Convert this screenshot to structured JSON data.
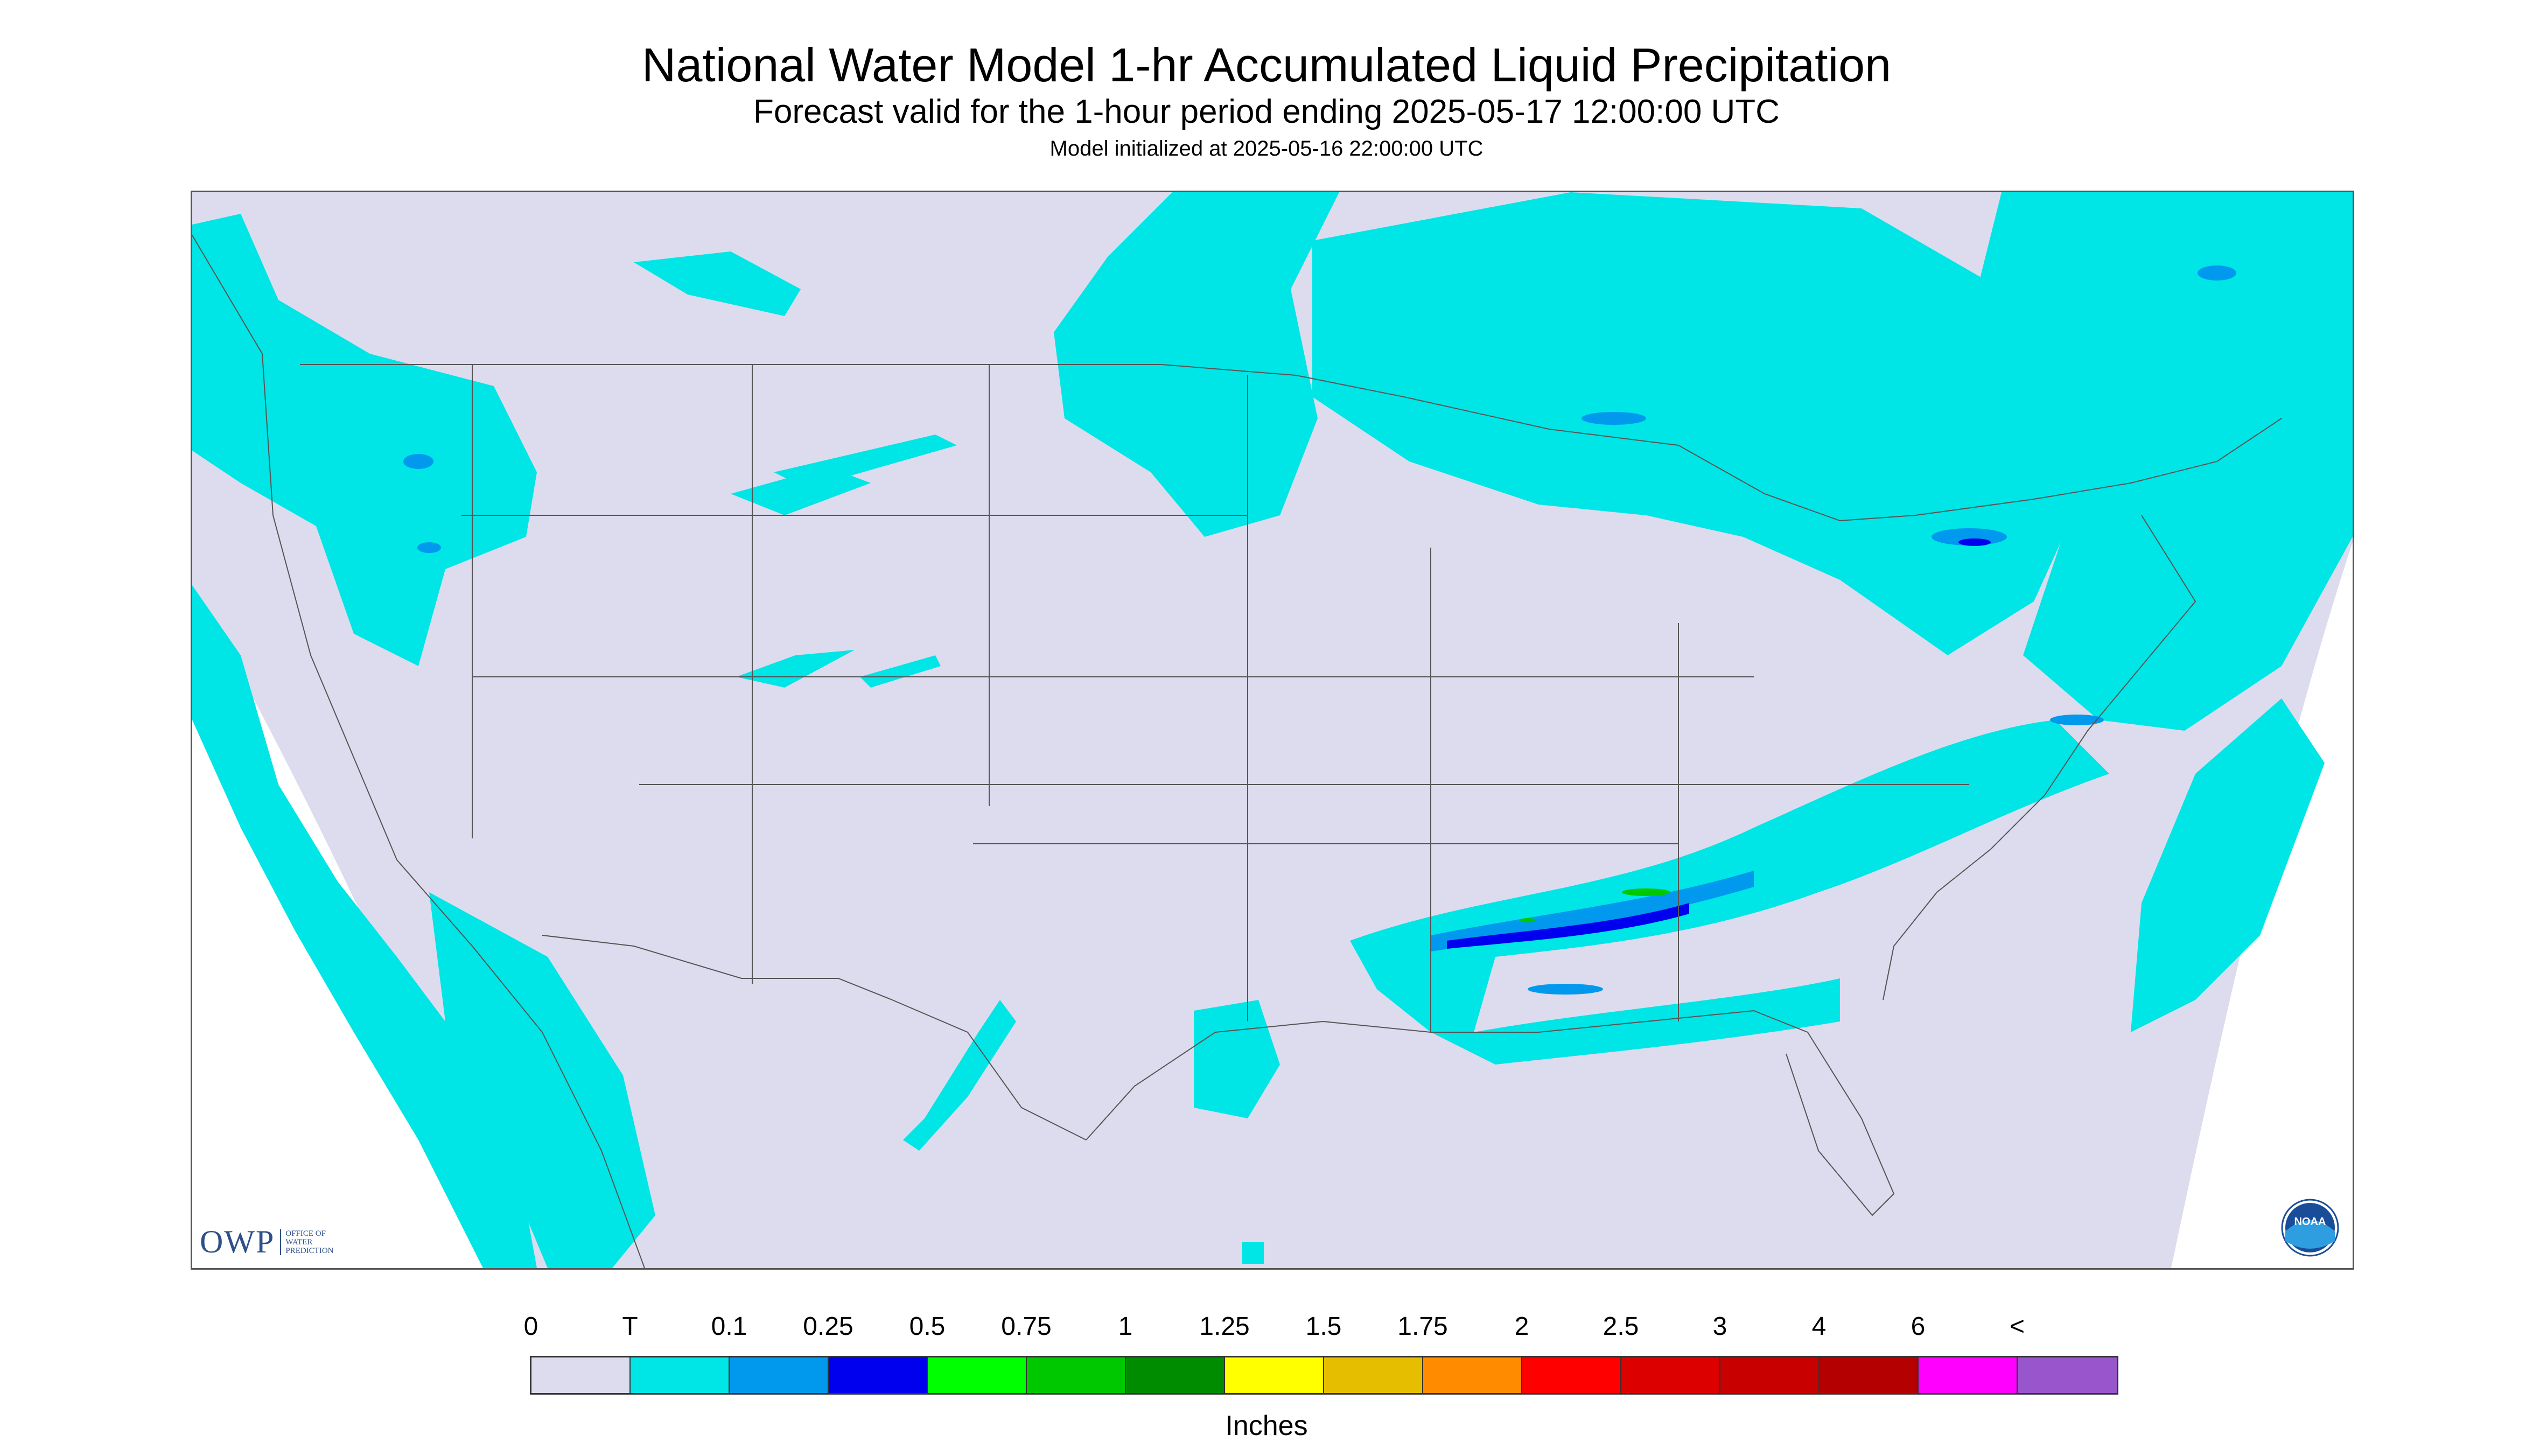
{
  "header": {
    "title": "National Water Model 1-hr Accumulated Liquid Precipitation",
    "subtitle": "Forecast valid for the 1-hour period ending 2025-05-17 12:00:00 UTC",
    "init_line": "Model initialized at 2025-05-16 22:00:00 UTC"
  },
  "logos": {
    "owp_letters": "OWP",
    "owp_subtext": "OFFICE OF WATER PREDICTION",
    "noaa_text": "NOAA"
  },
  "legend": {
    "units": "Inches",
    "tick_labels": [
      "0",
      "T",
      "0.1",
      "0.25",
      "0.5",
      "0.75",
      "1",
      "1.25",
      "1.5",
      "1.75",
      "2",
      "2.5",
      "3",
      "4",
      "6",
      "<"
    ],
    "colors": [
      "#dcdcee",
      "#00e5e5",
      "#0099ee",
      "#0000ee",
      "#00ff00",
      "#00c800",
      "#008c00",
      "#ffff00",
      "#e6be00",
      "#ff8c00",
      "#ff0000",
      "#dc0000",
      "#c80000",
      "#b40000",
      "#ff00ff",
      "#9955cc"
    ]
  },
  "map": {
    "background_color": "#dcdcee",
    "outside_color": "#ffffff",
    "border_color": "#666666",
    "rain_colors": {
      "trace": "#00e5e5",
      "light": "#0099ee",
      "moderate": "#0000ee",
      "heavy": "#00c800"
    }
  }
}
